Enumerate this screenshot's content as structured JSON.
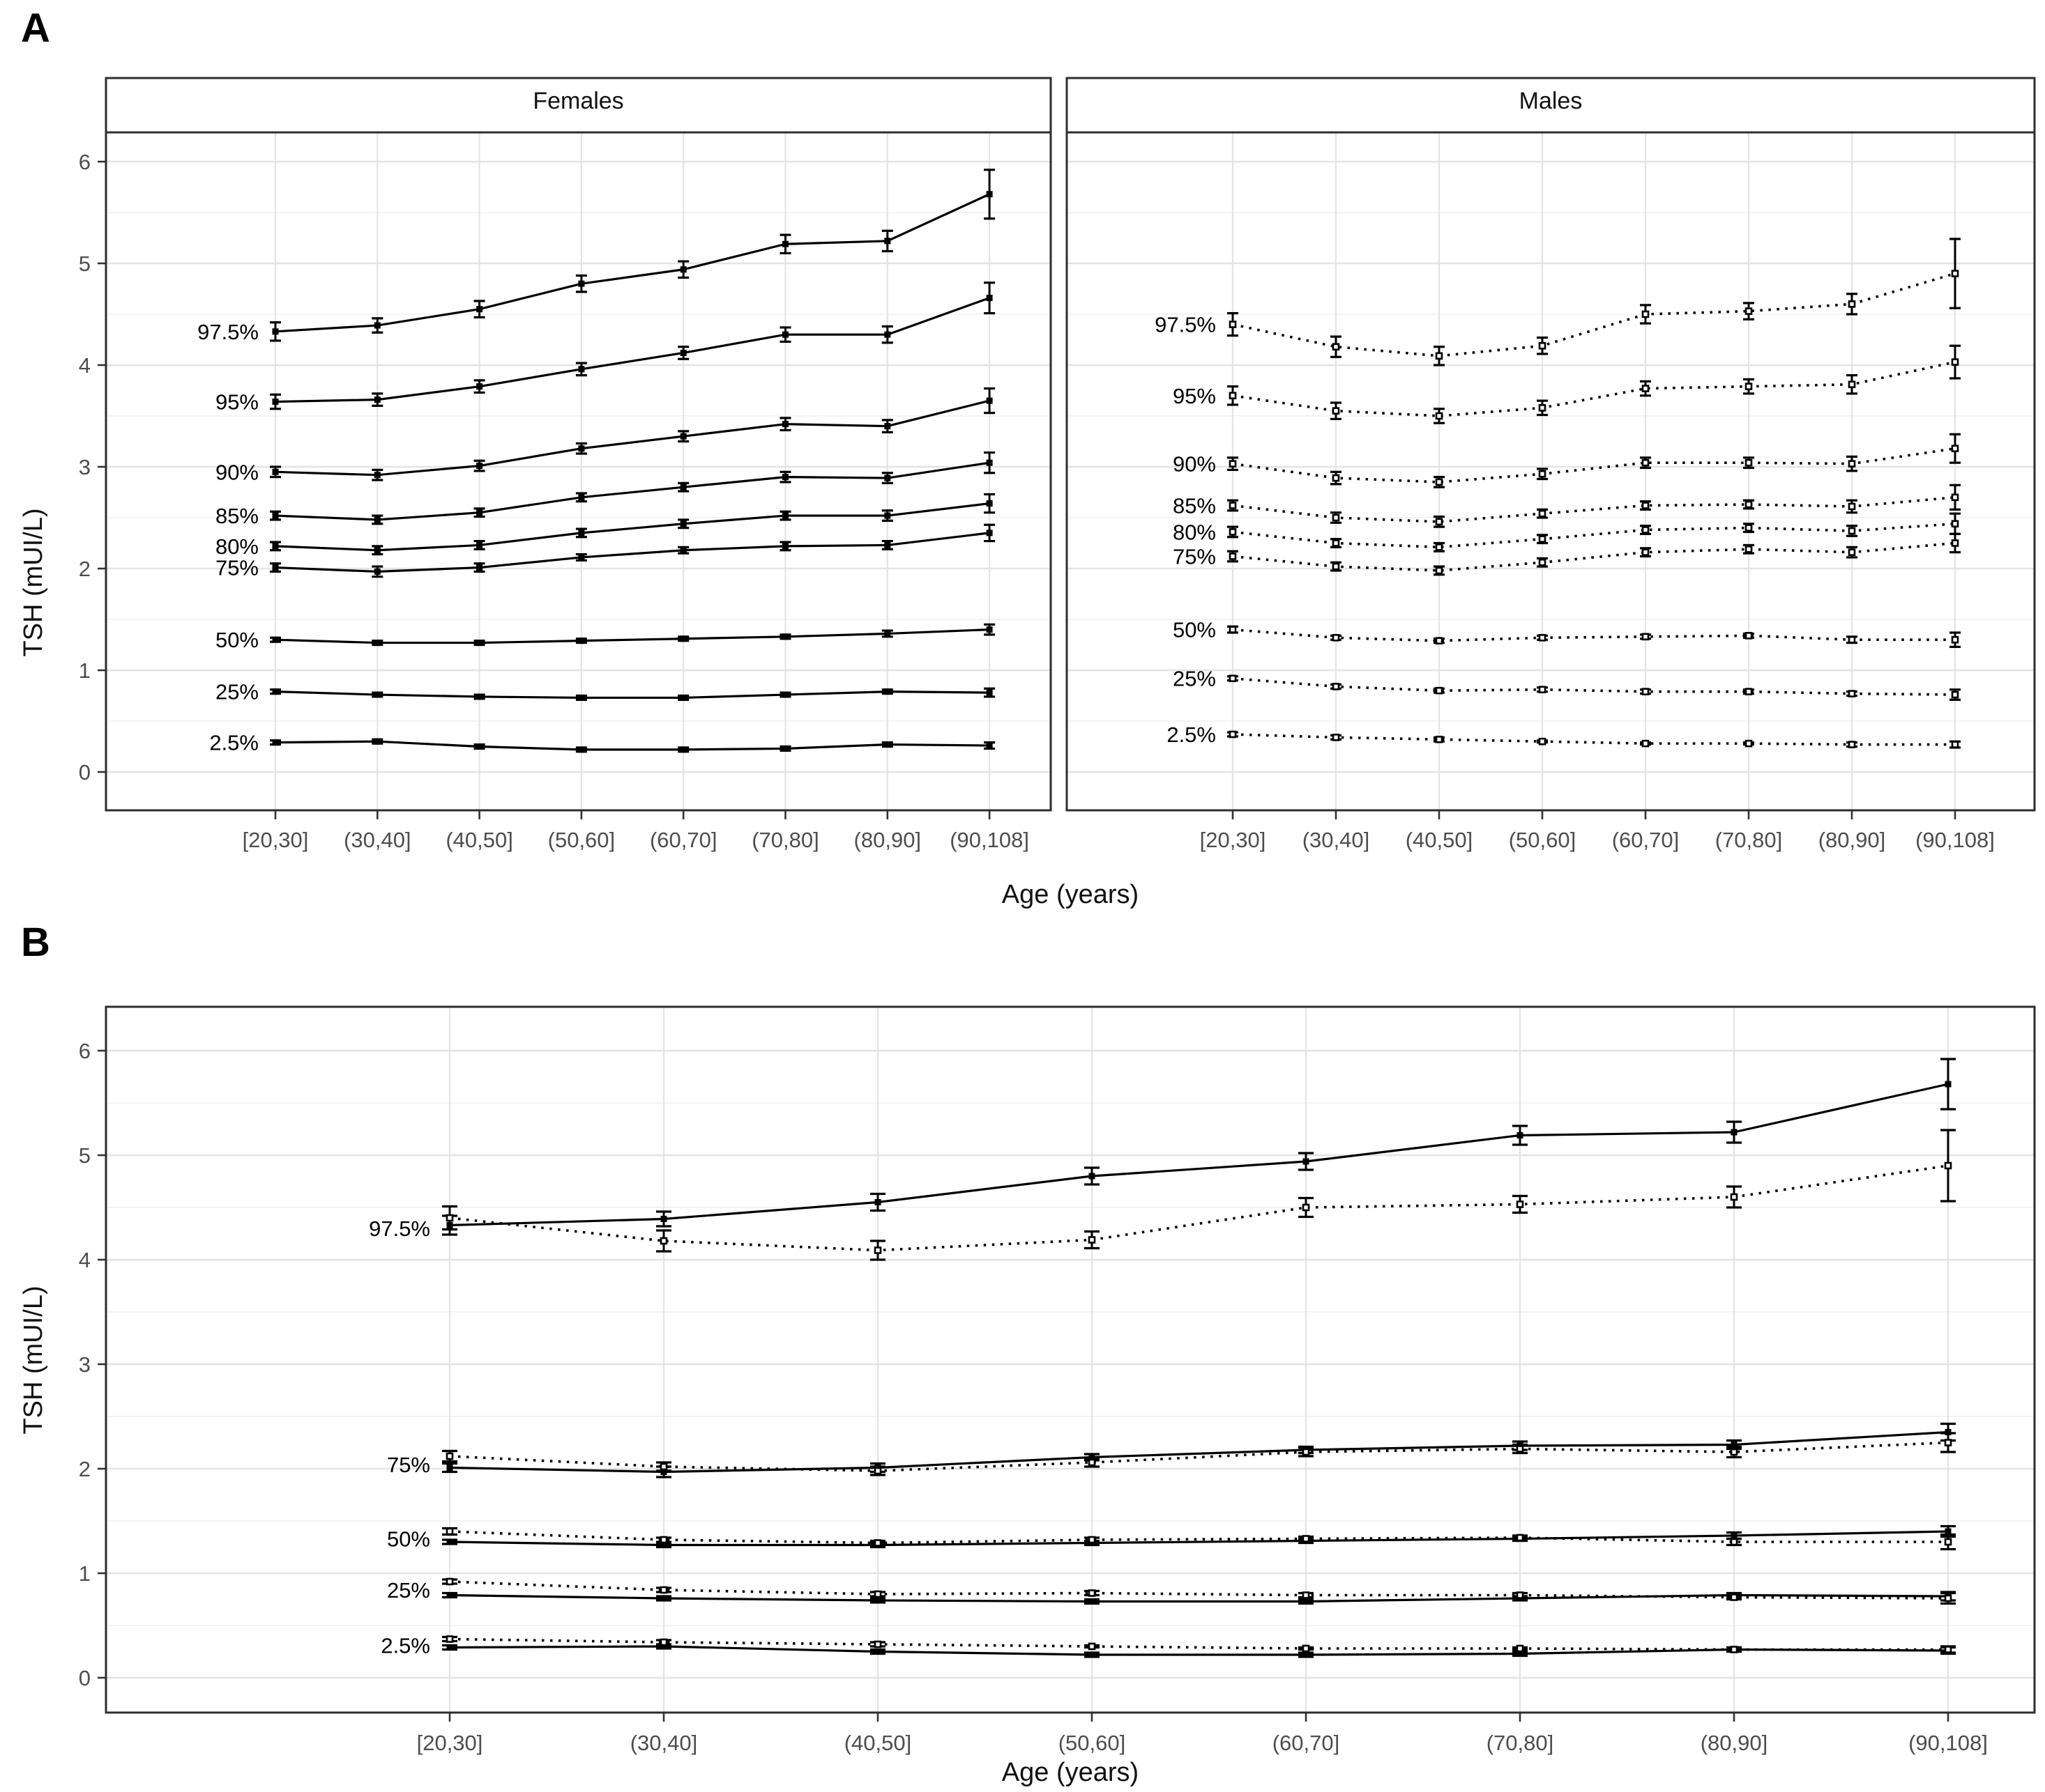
{
  "figure": {
    "panels": [
      {
        "letter": "A"
      },
      {
        "letter": "B"
      }
    ],
    "y_axis_title": "TSH (mUI/L)",
    "x_axis_title": "Age (years)",
    "colors": {
      "line": "#000000",
      "tick_text": "#4d4d4d",
      "title_text": "#111111",
      "grid_major": "#e4e4e4",
      "grid_minor": "#f2f2f2",
      "panel_border": "#2e2e2e",
      "background": "#ffffff"
    }
  },
  "chart_data": [
    {
      "id": "panel_a",
      "type": "line",
      "title": "A",
      "xlabel": "Age (years)",
      "ylabel": "TSH (mUI/L)",
      "ylim": [
        0,
        6.4
      ],
      "y_ticks": [
        0,
        1,
        2,
        3,
        4,
        5,
        6
      ],
      "grid": true,
      "legend_position": "none",
      "categories": [
        "[20,30]",
        "(30,40]",
        "(40,50]",
        "(50,60]",
        "(60,70]",
        "(70,80]",
        "(80,90]",
        "(90,108]"
      ],
      "facets": [
        {
          "name": "Females",
          "line_style": "solid",
          "series": [
            {
              "name": "97.5%",
              "values": [
                4.33,
                4.39,
                4.55,
                4.8,
                4.94,
                5.19,
                5.22,
                5.68
              ],
              "err": [
                0.09,
                0.07,
                0.08,
                0.08,
                0.08,
                0.09,
                0.1,
                0.24
              ]
            },
            {
              "name": "95%",
              "values": [
                3.64,
                3.66,
                3.79,
                3.96,
                4.12,
                4.3,
                4.3,
                4.66
              ],
              "err": [
                0.07,
                0.06,
                0.06,
                0.06,
                0.06,
                0.07,
                0.08,
                0.15
              ]
            },
            {
              "name": "90%",
              "values": [
                2.95,
                2.92,
                3.01,
                3.18,
                3.3,
                3.42,
                3.4,
                3.65
              ],
              "err": [
                0.05,
                0.05,
                0.05,
                0.05,
                0.05,
                0.06,
                0.06,
                0.12
              ]
            },
            {
              "name": "85%",
              "values": [
                2.52,
                2.48,
                2.55,
                2.7,
                2.8,
                2.9,
                2.89,
                3.04
              ],
              "err": [
                0.04,
                0.04,
                0.04,
                0.04,
                0.04,
                0.05,
                0.05,
                0.1
              ]
            },
            {
              "name": "80%",
              "values": [
                2.22,
                2.18,
                2.23,
                2.35,
                2.44,
                2.52,
                2.52,
                2.64
              ],
              "err": [
                0.04,
                0.04,
                0.04,
                0.04,
                0.04,
                0.04,
                0.05,
                0.09
              ]
            },
            {
              "name": "75%",
              "values": [
                2.01,
                1.97,
                2.01,
                2.11,
                2.18,
                2.22,
                2.23,
                2.35
              ],
              "err": [
                0.04,
                0.05,
                0.04,
                0.03,
                0.03,
                0.04,
                0.04,
                0.08
              ]
            },
            {
              "name": "50%",
              "values": [
                1.3,
                1.27,
                1.27,
                1.29,
                1.31,
                1.33,
                1.36,
                1.4
              ],
              "err": [
                0.02,
                0.02,
                0.02,
                0.02,
                0.02,
                0.02,
                0.03,
                0.05
              ]
            },
            {
              "name": "25%",
              "values": [
                0.79,
                0.76,
                0.74,
                0.73,
                0.73,
                0.76,
                0.79,
                0.78
              ],
              "err": [
                0.02,
                0.02,
                0.02,
                0.02,
                0.02,
                0.02,
                0.02,
                0.04
              ]
            },
            {
              "name": "2.5%",
              "values": [
                0.29,
                0.3,
                0.25,
                0.22,
                0.22,
                0.23,
                0.27,
                0.26
              ],
              "err": [
                0.02,
                0.02,
                0.02,
                0.02,
                0.02,
                0.02,
                0.02,
                0.03
              ]
            }
          ]
        },
        {
          "name": "Males",
          "line_style": "dotted",
          "series": [
            {
              "name": "97.5%",
              "values": [
                4.4,
                4.18,
                4.09,
                4.19,
                4.5,
                4.53,
                4.6,
                4.9
              ],
              "err": [
                0.11,
                0.1,
                0.09,
                0.08,
                0.09,
                0.08,
                0.1,
                0.34
              ]
            },
            {
              "name": "95%",
              "values": [
                3.7,
                3.55,
                3.5,
                3.58,
                3.77,
                3.79,
                3.81,
                4.03
              ],
              "err": [
                0.09,
                0.08,
                0.07,
                0.07,
                0.07,
                0.07,
                0.09,
                0.16
              ]
            },
            {
              "name": "90%",
              "values": [
                3.03,
                2.89,
                2.85,
                2.93,
                3.04,
                3.04,
                3.03,
                3.18
              ],
              "err": [
                0.06,
                0.06,
                0.05,
                0.05,
                0.05,
                0.05,
                0.07,
                0.14
              ]
            },
            {
              "name": "85%",
              "values": [
                2.62,
                2.5,
                2.46,
                2.54,
                2.62,
                2.63,
                2.61,
                2.7
              ],
              "err": [
                0.05,
                0.05,
                0.05,
                0.04,
                0.04,
                0.04,
                0.06,
                0.12
              ]
            },
            {
              "name": "80%",
              "values": [
                2.36,
                2.25,
                2.21,
                2.29,
                2.38,
                2.4,
                2.37,
                2.44
              ],
              "err": [
                0.05,
                0.04,
                0.04,
                0.04,
                0.04,
                0.04,
                0.05,
                0.1
              ]
            },
            {
              "name": "75%",
              "values": [
                2.12,
                2.02,
                1.98,
                2.06,
                2.16,
                2.19,
                2.16,
                2.25
              ],
              "err": [
                0.05,
                0.04,
                0.04,
                0.04,
                0.04,
                0.04,
                0.05,
                0.09
              ]
            },
            {
              "name": "50%",
              "values": [
                1.4,
                1.32,
                1.29,
                1.32,
                1.33,
                1.34,
                1.3,
                1.3
              ],
              "err": [
                0.03,
                0.02,
                0.02,
                0.02,
                0.02,
                0.02,
                0.03,
                0.07
              ]
            },
            {
              "name": "25%",
              "values": [
                0.92,
                0.84,
                0.8,
                0.81,
                0.79,
                0.79,
                0.77,
                0.76
              ],
              "err": [
                0.02,
                0.02,
                0.02,
                0.02,
                0.02,
                0.02,
                0.02,
                0.05
              ]
            },
            {
              "name": "2.5%",
              "values": [
                0.37,
                0.34,
                0.32,
                0.3,
                0.28,
                0.28,
                0.27,
                0.27
              ],
              "err": [
                0.02,
                0.02,
                0.02,
                0.01,
                0.01,
                0.01,
                0.02,
                0.03
              ]
            }
          ]
        }
      ]
    },
    {
      "id": "panel_b",
      "type": "line",
      "title": "B",
      "xlabel": "Age (years)",
      "ylabel": "TSH (mUI/L)",
      "ylim": [
        0,
        6.4
      ],
      "y_ticks": [
        0,
        1,
        2,
        3,
        4,
        5,
        6
      ],
      "grid": true,
      "legend_position": "none",
      "categories": [
        "[20,30]",
        "(30,40]",
        "(40,50]",
        "(50,60]",
        "(60,70]",
        "(70,80]",
        "(80,90]",
        "(90,108]"
      ],
      "label_values": {
        "97.5%": 4.3,
        "75%": 2.04,
        "50%": 1.33,
        "25%": 0.84,
        "2.5%": 0.31
      },
      "groups": [
        {
          "name": "Females",
          "line_style": "solid",
          "series": [
            {
              "name": "97.5%",
              "values": [
                4.33,
                4.39,
                4.55,
                4.8,
                4.94,
                5.19,
                5.22,
                5.68
              ],
              "err": [
                0.09,
                0.07,
                0.08,
                0.08,
                0.08,
                0.09,
                0.1,
                0.24
              ]
            },
            {
              "name": "75%",
              "values": [
                2.01,
                1.97,
                2.01,
                2.11,
                2.18,
                2.22,
                2.23,
                2.35
              ],
              "err": [
                0.04,
                0.05,
                0.04,
                0.03,
                0.03,
                0.04,
                0.04,
                0.08
              ]
            },
            {
              "name": "50%",
              "values": [
                1.3,
                1.27,
                1.27,
                1.29,
                1.31,
                1.33,
                1.36,
                1.4
              ],
              "err": [
                0.02,
                0.02,
                0.02,
                0.02,
                0.02,
                0.02,
                0.03,
                0.05
              ]
            },
            {
              "name": "25%",
              "values": [
                0.79,
                0.76,
                0.74,
                0.73,
                0.73,
                0.76,
                0.79,
                0.78
              ],
              "err": [
                0.02,
                0.02,
                0.02,
                0.02,
                0.02,
                0.02,
                0.02,
                0.04
              ]
            },
            {
              "name": "2.5%",
              "values": [
                0.29,
                0.3,
                0.25,
                0.22,
                0.22,
                0.23,
                0.27,
                0.26
              ],
              "err": [
                0.02,
                0.02,
                0.02,
                0.02,
                0.02,
                0.02,
                0.02,
                0.03
              ]
            }
          ]
        },
        {
          "name": "Males",
          "line_style": "dotted",
          "series": [
            {
              "name": "97.5%",
              "values": [
                4.4,
                4.18,
                4.09,
                4.19,
                4.5,
                4.53,
                4.6,
                4.9
              ],
              "err": [
                0.11,
                0.1,
                0.09,
                0.08,
                0.09,
                0.08,
                0.1,
                0.34
              ]
            },
            {
              "name": "75%",
              "values": [
                2.12,
                2.02,
                1.98,
                2.06,
                2.16,
                2.19,
                2.16,
                2.25
              ],
              "err": [
                0.05,
                0.04,
                0.04,
                0.04,
                0.04,
                0.04,
                0.05,
                0.09
              ]
            },
            {
              "name": "50%",
              "values": [
                1.4,
                1.32,
                1.29,
                1.32,
                1.33,
                1.34,
                1.3,
                1.3
              ],
              "err": [
                0.03,
                0.02,
                0.02,
                0.02,
                0.02,
                0.02,
                0.03,
                0.07
              ]
            },
            {
              "name": "25%",
              "values": [
                0.92,
                0.84,
                0.8,
                0.81,
                0.79,
                0.79,
                0.77,
                0.76
              ],
              "err": [
                0.02,
                0.02,
                0.02,
                0.02,
                0.02,
                0.02,
                0.02,
                0.05
              ]
            },
            {
              "name": "2.5%",
              "values": [
                0.37,
                0.34,
                0.32,
                0.3,
                0.28,
                0.28,
                0.27,
                0.27
              ],
              "err": [
                0.02,
                0.02,
                0.02,
                0.01,
                0.01,
                0.01,
                0.02,
                0.03
              ]
            }
          ]
        }
      ]
    }
  ]
}
